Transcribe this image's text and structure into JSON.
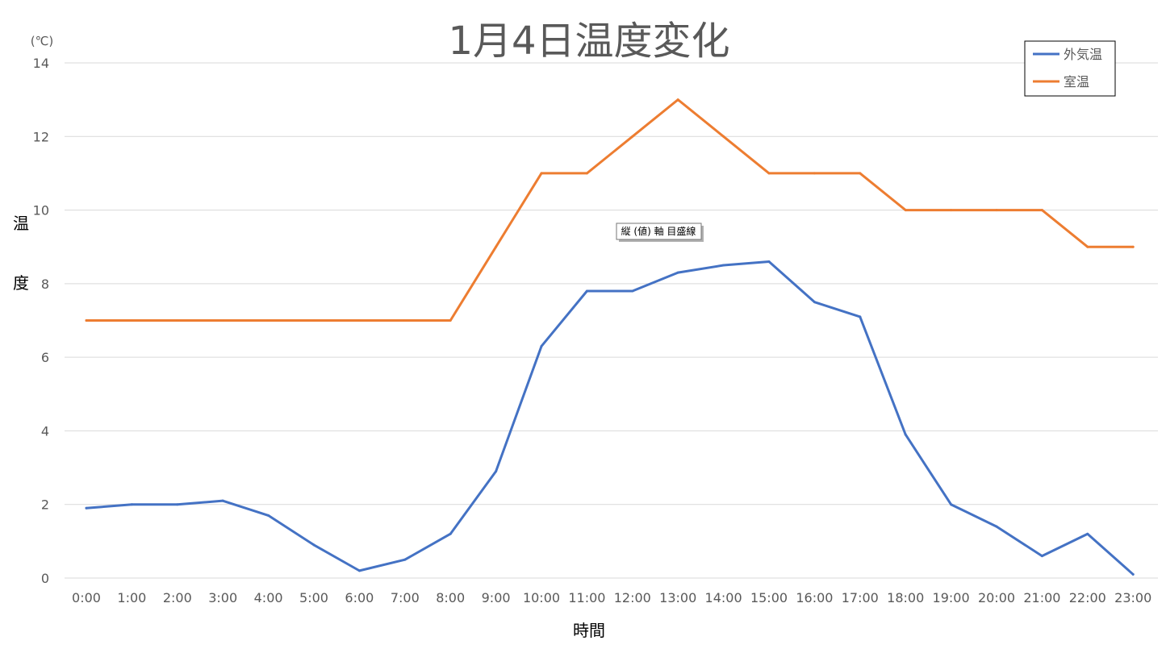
{
  "chart_data": {
    "type": "line",
    "title": "1月4日温度変化",
    "xlabel": "時間",
    "ylabel": "温度",
    "y_unit": "(℃)",
    "ylim": [
      0,
      14
    ],
    "y_ticks": [
      0,
      2,
      4,
      6,
      8,
      10,
      12,
      14
    ],
    "grid": true,
    "legend_position": "top-right",
    "categories": [
      "0:00",
      "1:00",
      "2:00",
      "3:00",
      "4:00",
      "5:00",
      "6:00",
      "7:00",
      "8:00",
      "9:00",
      "10:00",
      "11:00",
      "12:00",
      "13:00",
      "14:00",
      "15:00",
      "16:00",
      "17:00",
      "18:00",
      "19:00",
      "20:00",
      "21:00",
      "22:00",
      "23:00"
    ],
    "series": [
      {
        "name": "外気温",
        "color": "#4472c4",
        "values": [
          1.9,
          2.0,
          2.0,
          2.1,
          1.7,
          0.9,
          0.2,
          0.5,
          1.2,
          2.9,
          6.3,
          7.8,
          7.8,
          8.3,
          8.5,
          8.6,
          7.5,
          7.1,
          3.9,
          2.0,
          1.4,
          0.6,
          1.2,
          0.1
        ]
      },
      {
        "name": "室温",
        "color": "#ed7d31",
        "values": [
          7,
          7,
          7,
          7,
          7,
          7,
          7,
          7,
          7,
          9,
          11,
          11,
          12,
          13,
          12,
          11,
          11,
          11,
          10,
          10,
          10,
          10,
          9,
          9
        ]
      }
    ],
    "tooltip": "縦 (値) 軸 目盛線"
  }
}
